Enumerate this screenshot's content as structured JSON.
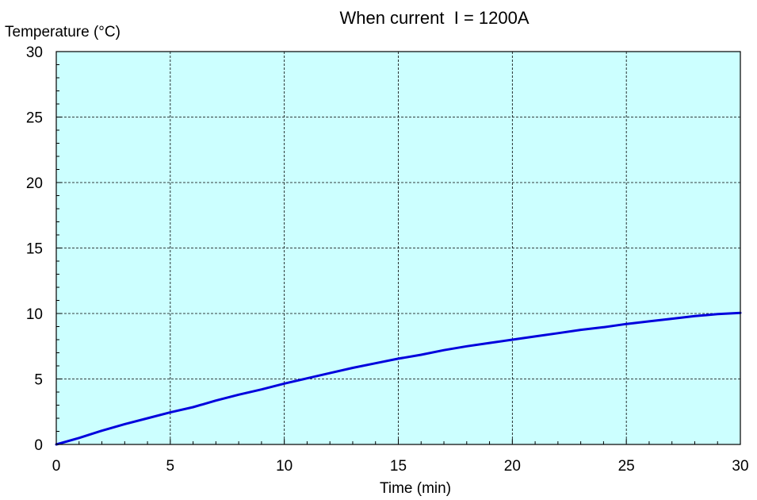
{
  "chart_data": {
    "type": "line",
    "title": "When current  I = 1200A",
    "xlabel": "Time (min)",
    "ylabel": "Temperature (°C)",
    "xlim": [
      0,
      30
    ],
    "ylim": [
      0,
      30
    ],
    "x_ticks": [
      0,
      5,
      10,
      15,
      20,
      25,
      30
    ],
    "y_ticks": [
      0,
      5,
      10,
      15,
      20,
      25,
      30
    ],
    "x_tick_labels": [
      "0",
      "5",
      "10",
      "15",
      "20",
      "25",
      "30"
    ],
    "y_tick_labels": [
      "0",
      "5",
      "10",
      "15",
      "20",
      "25",
      "30"
    ],
    "grid": true,
    "series": [
      {
        "x": [
          0,
          1,
          2,
          3,
          4,
          5,
          6,
          7,
          8,
          9,
          10,
          11,
          12,
          13,
          14,
          15,
          16,
          17,
          18,
          19,
          20,
          21,
          22,
          23,
          24,
          25,
          26,
          27,
          28,
          29,
          30
        ],
        "y": [
          0,
          0.5,
          1.05,
          1.55,
          2.0,
          2.45,
          2.85,
          3.35,
          3.8,
          4.2,
          4.65,
          5.05,
          5.45,
          5.85,
          6.2,
          6.55,
          6.85,
          7.2,
          7.5,
          7.75,
          8.0,
          8.25,
          8.5,
          8.75,
          8.95,
          9.2,
          9.4,
          9.6,
          9.8,
          9.95,
          10.05
        ]
      }
    ],
    "colors": {
      "plot_bg": "#ccffff",
      "line": "#0000dd",
      "grid": "#000000"
    }
  }
}
